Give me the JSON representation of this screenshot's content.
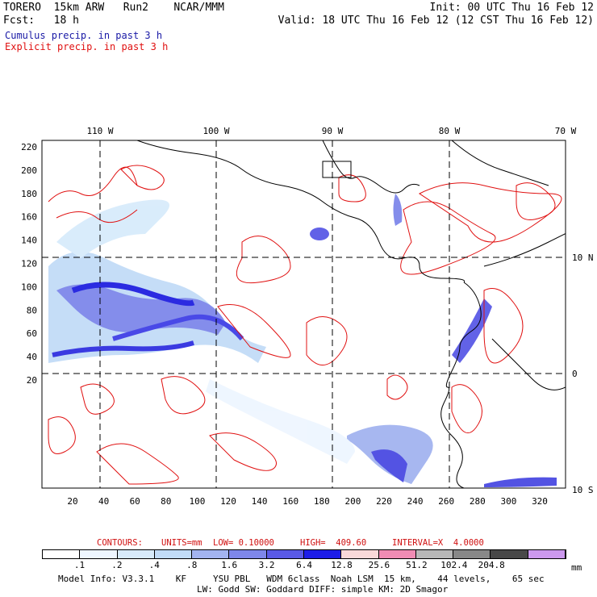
{
  "header": {
    "left_line1": "TORERO  15km ARW   Run2    NCAR/MMM",
    "left_line2": "Fcst:   18 h",
    "right_line1": "Init: 00 UTC Thu 16 Feb 12",
    "right_line2": "Valid: 18 UTC Thu 16 Feb 12 (12 CST Thu 16 Feb 12)",
    "legend_cumulus": "Cumulus precip. in past 3 h",
    "legend_explicit": "Explicit precip. in past 3 h",
    "colors": {
      "cumulus": "#1a1aa6",
      "explicit": "#e01010"
    }
  },
  "map": {
    "top_lon_labels": [
      "110 W",
      "100 W",
      "90 W",
      "80 W",
      "70 W"
    ],
    "right_lat_labels": [
      "10 N",
      "0",
      "10 S"
    ],
    "y_ticks": [
      "220",
      "200",
      "180",
      "160",
      "140",
      "120",
      "100",
      "80",
      "60",
      "40",
      "20"
    ],
    "x_ticks": [
      "20",
      "40",
      "60",
      "80",
      "100",
      "120",
      "140",
      "160",
      "180",
      "200",
      "220",
      "240",
      "260",
      "280",
      "300",
      "320"
    ]
  },
  "contours_info": {
    "label": "CONTOURS:",
    "units": "UNITS=mm",
    "low": "LOW= 0.10000",
    "high": "HIGH=  409.60",
    "interval": "INTERVAL=X  4.0000"
  },
  "colorbar": {
    "colors": [
      "#ffffff",
      "#eef6ff",
      "#d8ebfb",
      "#c2dcf7",
      "#a3b4f0",
      "#7e87ea",
      "#5a5ae6",
      "#1d1de8",
      "#f9d9d9",
      "#f08cb4",
      "#b8b8b8",
      "#888888",
      "#484848",
      "#cc99ee"
    ],
    "labels": [
      ".1",
      ".2",
      ".4",
      ".8",
      "1.6",
      "3.2",
      "6.4",
      "12.8",
      "25.6",
      "51.2",
      "102.4",
      "204.8"
    ],
    "unit": "mm"
  },
  "footer": {
    "line1": "Model Info: V3.3.1    KF     YSU PBL   WDM 6class  Noah LSM  15 km,    44 levels,    65 sec",
    "line2": "LW: Godd SW: Goddard DIFF: simple KM: 2D Smagor"
  }
}
